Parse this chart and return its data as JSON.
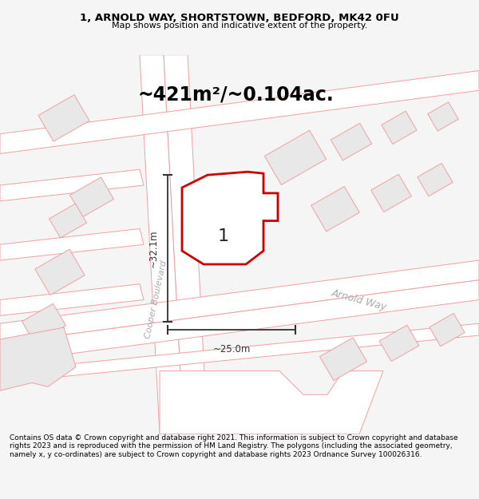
{
  "title_line1": "1, ARNOLD WAY, SHORTSTOWN, BEDFORD, MK42 0FU",
  "title_line2": "Map shows position and indicative extent of the property.",
  "area_label": "~421m²/~0.104ac.",
  "plot_number": "1",
  "dim_horizontal": "~25.0m",
  "dim_vertical": "~32.1m",
  "street_arnold": "Arnold Way",
  "street_cooper": "Cooper Boulevard",
  "footer_text": "Contains OS data © Crown copyright and database right 2021. This information is subject to Crown copyright and database rights 2023 and is reproduced with the permission of HM Land Registry. The polygons (including the associated geometry, namely x, y co-ordinates) are subject to Crown copyright and database rights 2023 Ordnance Survey 100026316.",
  "bg_color": "#f5f5f5",
  "map_bg": "#ffffff",
  "building_fill": "#e8e8e8",
  "road_line": "#f0a0a0",
  "road_fill": "#ffffff",
  "plot_line": "#cc0000",
  "plot_fill": "#ffffff",
  "dim_line": "#333333",
  "title_color": "#000000",
  "footer_color": "#000000",
  "area_color": "#000000",
  "street_color": "#aaaaaa",
  "plot_pts_x": [
    245,
    295,
    330,
    330,
    348,
    348,
    330,
    330,
    310,
    255,
    228,
    228
  ],
  "plot_pts_y": [
    168,
    148,
    148,
    175,
    175,
    210,
    210,
    245,
    265,
    265,
    245,
    200
  ]
}
